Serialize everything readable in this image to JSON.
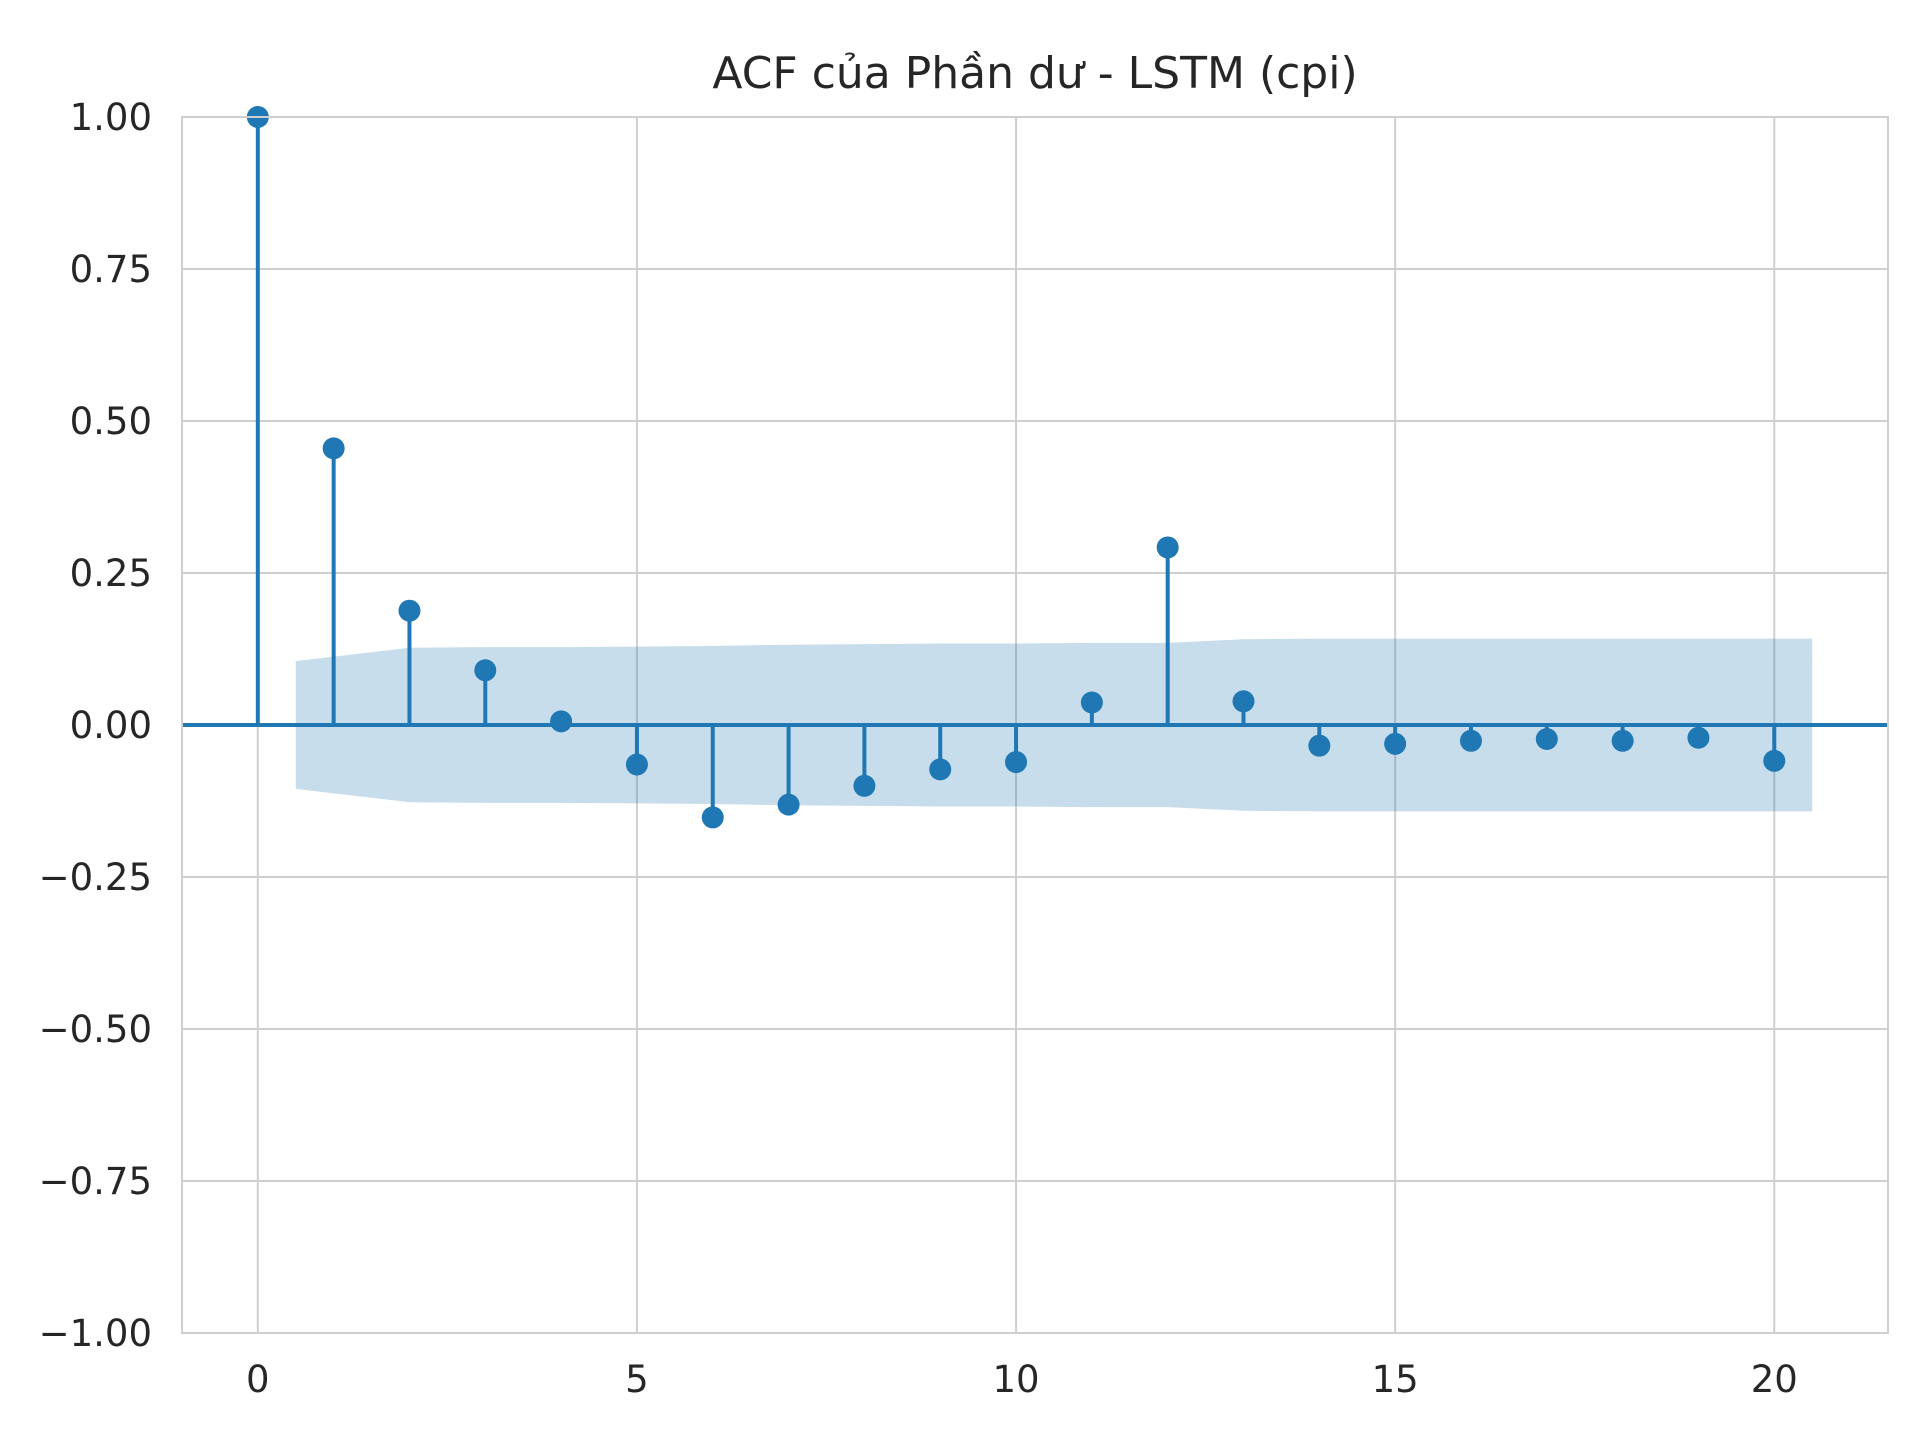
{
  "chart_data": {
    "type": "scatter",
    "subtype": "stem",
    "title": "ACF của Phần dư - LSTM (cpi)",
    "xlabel": "",
    "ylabel": "",
    "x": [
      0,
      1,
      2,
      3,
      4,
      5,
      6,
      7,
      8,
      9,
      10,
      11,
      12,
      13,
      14,
      15,
      16,
      17,
      18,
      19,
      20
    ],
    "values": [
      1.0,
      0.455,
      0.188,
      0.09,
      0.006,
      -0.065,
      -0.152,
      -0.131,
      -0.1,
      -0.073,
      -0.061,
      0.037,
      0.292,
      0.039,
      -0.034,
      -0.031,
      -0.026,
      -0.023,
      -0.026,
      -0.021,
      -0.059
    ],
    "confidence_band": {
      "x": [
        0.5,
        2,
        3,
        4,
        5,
        6,
        7,
        8,
        9,
        10,
        11,
        12,
        13,
        14,
        15,
        16,
        17,
        18,
        19,
        20.5
      ],
      "upper": [
        0.105,
        0.127,
        0.128,
        0.128,
        0.129,
        0.13,
        0.132,
        0.133,
        0.134,
        0.134,
        0.135,
        0.135,
        0.141,
        0.142,
        0.142,
        0.142,
        0.142,
        0.142,
        0.142,
        0.142
      ],
      "lower": [
        -0.105,
        -0.127,
        -0.128,
        -0.128,
        -0.129,
        -0.13,
        -0.132,
        -0.133,
        -0.134,
        -0.134,
        -0.135,
        -0.135,
        -0.141,
        -0.142,
        -0.142,
        -0.142,
        -0.142,
        -0.142,
        -0.142,
        -0.142
      ]
    },
    "xlim": [
      -1,
      21.5
    ],
    "ylim": [
      -1.0,
      1.0
    ],
    "xticks": [
      0,
      5,
      10,
      15,
      20
    ],
    "xtick_labels": [
      "0",
      "5",
      "10",
      "15",
      "20"
    ],
    "yticks": [
      -1.0,
      -0.75,
      -0.5,
      -0.25,
      0.0,
      0.25,
      0.5,
      0.75,
      1.0
    ],
    "ytick_labels": [
      "−1.00",
      "−0.75",
      "−0.50",
      "−0.25",
      "0.00",
      "0.25",
      "0.50",
      "0.75",
      "1.00"
    ],
    "grid": true,
    "colors": {
      "stem": "#1f77b4",
      "band": "#1f77b4",
      "grid": "#cfcfcf",
      "text": "#262626"
    }
  }
}
